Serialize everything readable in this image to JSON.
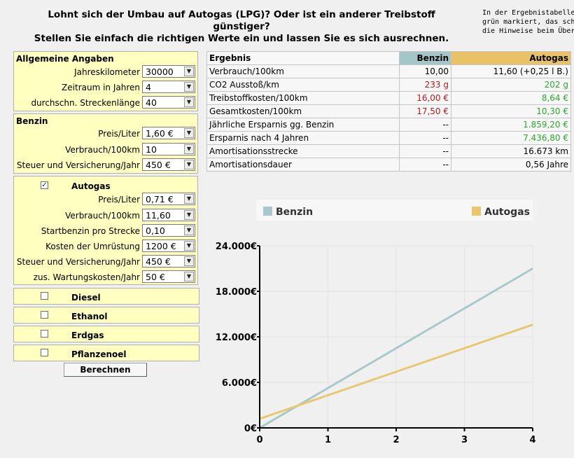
{
  "header": {
    "line1": "Lohnt sich der Umbau auf Autogas (LPG)? Oder ist ein anderer Treibstoff günstiger?",
    "line2": "Stellen Sie einfach die richtigen Werte ein und lassen Sie es sich ausrechnen."
  },
  "side_note": {
    "line1": "In der Ergebnistabelle w",
    "line2": "grün markiert, das schle",
    "line3": "die Hinweise beim Über"
  },
  "general": {
    "title": "Allgemeine Angaben",
    "fields": [
      {
        "label": "Jahreskilometer",
        "value": "30000"
      },
      {
        "label": "Zeitraum in Jahren",
        "value": "4"
      },
      {
        "label": "durchschn. Streckenlänge",
        "value": "40"
      }
    ]
  },
  "benzin": {
    "title": "Benzin",
    "fields": [
      {
        "label": "Preis/Liter",
        "value": "1,60 €"
      },
      {
        "label": "Verbrauch/100km",
        "value": "10"
      },
      {
        "label": "Steuer und Versicherung/Jahr",
        "value": "450 €"
      }
    ]
  },
  "autogas": {
    "title": "Autogas",
    "checked": true,
    "check_mark": "✓",
    "fields": [
      {
        "label": "Preis/Liter",
        "value": "0,71 €"
      },
      {
        "label": "Verbrauch/100km",
        "value": "11,60"
      },
      {
        "label": "Startbenzin pro Strecke",
        "value": "0,10"
      },
      {
        "label": "Kosten der Umrüstung",
        "value": "1200 €"
      },
      {
        "label": "Steuer und Versicherung/Jahr",
        "value": "450 €"
      },
      {
        "label": "zus. Wartungskosten/Jahr",
        "value": "50 €"
      }
    ]
  },
  "other_fuels": [
    {
      "label": "Diesel",
      "checked": false
    },
    {
      "label": "Ethanol",
      "checked": false
    },
    {
      "label": "Erdgas",
      "checked": false
    },
    {
      "label": "Pflanzenoel",
      "checked": false
    }
  ],
  "dropdown_arrow": "▼",
  "calculate_label": "Berechnen",
  "result_table": {
    "headers": [
      "Ergebnis",
      "Benzin",
      "Autogas"
    ],
    "rows": [
      {
        "label": "Verbrauch/100km",
        "benzin": "10,00",
        "autogas": "11,60 (+0,25 l B.)",
        "benzin_color": "",
        "autogas_color": ""
      },
      {
        "label": "CO2 Ausstoß/km",
        "benzin": "233 g",
        "autogas": "202 g",
        "benzin_color": "red",
        "autogas_color": "green"
      },
      {
        "label": "Treibstoffkosten/100km",
        "benzin": "16,00 €",
        "autogas": "8,64 €",
        "benzin_color": "red",
        "autogas_color": "green"
      },
      {
        "label": "Gesamtkosten/100km",
        "benzin": "17,50 €",
        "autogas": "10,30 €",
        "benzin_color": "red",
        "autogas_color": "green"
      },
      {
        "label": "Jährliche Ersparnis gg. Benzin",
        "benzin": "--",
        "autogas": "1.859,20 €",
        "benzin_color": "",
        "autogas_color": "green"
      },
      {
        "label": "Ersparnis nach 4 Jahren",
        "benzin": "--",
        "autogas": "7.436,80 €",
        "benzin_color": "",
        "autogas_color": "green"
      },
      {
        "label": "Amortisationsstrecke",
        "benzin": "--",
        "autogas": "16.673 km",
        "benzin_color": "",
        "autogas_color": ""
      },
      {
        "label": "Amortisationsdauer",
        "benzin": "--",
        "autogas": "0,56 Jahre",
        "benzin_color": "",
        "autogas_color": ""
      }
    ]
  },
  "chart_data": {
    "type": "line",
    "x": [
      0,
      4
    ],
    "x_ticks": [
      "0",
      "1",
      "2",
      "3",
      "4"
    ],
    "y_ticks": [
      "0€",
      "6.000€",
      "12.000€",
      "18.000€",
      "24.000€"
    ],
    "y_tick_values": [
      0,
      6000,
      12000,
      18000,
      24000
    ],
    "ylim": [
      0,
      24000
    ],
    "xlim": [
      0,
      4
    ],
    "grid": true,
    "legend_position": "top",
    "series": [
      {
        "name": "Benzin",
        "color": "#a9c8c9",
        "values": [
          0,
          21000
        ]
      },
      {
        "name": "Autogas",
        "color": "#e8c76e",
        "values": [
          1200,
          13600
        ]
      }
    ]
  }
}
